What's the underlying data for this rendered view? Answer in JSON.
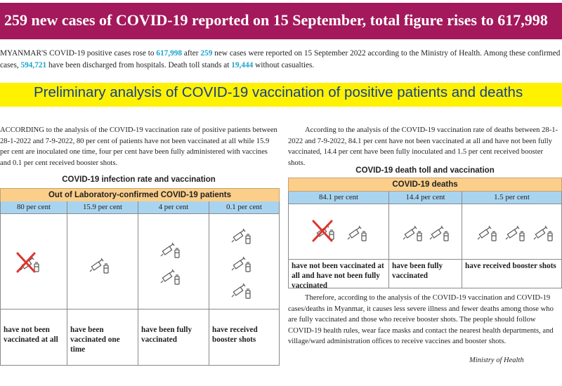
{
  "headline": "259 new cases of COVID-19 reported on  15 September, total figure rises to 617,998",
  "lead": {
    "t1": "MYANMAR'S COVID-19 positive cases rose to ",
    "total": "617,998",
    "t2": " after ",
    "new_cases": "259",
    "t3": " new cases were reported on 15 September 2022 according to the Ministry of Health. Among these confirmed cases, ",
    "discharged": "594,721",
    "t4": " have been discharged from hospitals. Death toll stands at ",
    "deaths": "19,444",
    "t5": " without casualties."
  },
  "section_title": "Preliminary analysis of COVID-19 vaccination of positive patients and deaths",
  "left_paragraph": "ACCORDING to the analysis of the COVID-19 vaccination rate of positive patients between 28-1-2022 and 7-9-2022, 80 per cent of patients have not been vaccinated at all while 15.9 per cent are inoculated one time, four per cent have been fully administered with vaccines and 0.1 per cent received booster shots.",
  "right_paragraph": "According to the analysis of the COVID-19 vaccination rate of deaths between 28-1-2022 and 7-9-2022, 84.1 per cent have not been vaccinated at all and have not been fully vaccinated, 14.4 per cent have been fully inoculated and 1.5 per cent received booster shots.",
  "infection_table": {
    "title": "COVID-19 infection rate and vaccination",
    "header": "Out of Laboratory-confirmed COVID-19 patients",
    "columns": [
      {
        "percent": "80 per cent",
        "caption": "have not been vaccinated at all"
      },
      {
        "percent": "15.9 per cent",
        "caption": "have been vaccinated one time"
      },
      {
        "percent": "4 per cent",
        "caption": "have been fully vaccinated"
      },
      {
        "percent": "0.1 per cent",
        "caption": "have received booster shots"
      }
    ]
  },
  "death_table": {
    "title": "COVID-19 death toll and vaccination",
    "header": "COVID-19 deaths",
    "columns": [
      {
        "percent": "84.1 per cent",
        "caption": "have not been vaccinated at all and have not been fully  vaccinated"
      },
      {
        "percent": "14.4 per cent",
        "caption": "have been fully vaccinated"
      },
      {
        "percent": "1.5 per cent",
        "caption": "have received booster shots"
      }
    ]
  },
  "conclusion": "Therefore, according to the analysis of the COVID-19 vaccination and COVID-19 cases/deaths in Myanmar, it causes less severe illness and fewer deaths among those who are fully vaccinated and those who receive booster shots. The people should follow COVID-19 health rules, wear face masks and contact the nearest health departments, and village/ward administration offices to receive vaccines and booster shots.",
  "signature": "Ministry of Health",
  "colors": {
    "banner": "#a3195b",
    "highlight_number": "#1aa3c9",
    "section_band": "#fff200",
    "section_title_text": "#1a3e8c",
    "table_header": "#fbcf8a",
    "table_subheader": "#a9d4f0",
    "cross": "#e0332c"
  },
  "icons": [
    "syringe-vial-icon",
    "cross-mark-icon"
  ]
}
